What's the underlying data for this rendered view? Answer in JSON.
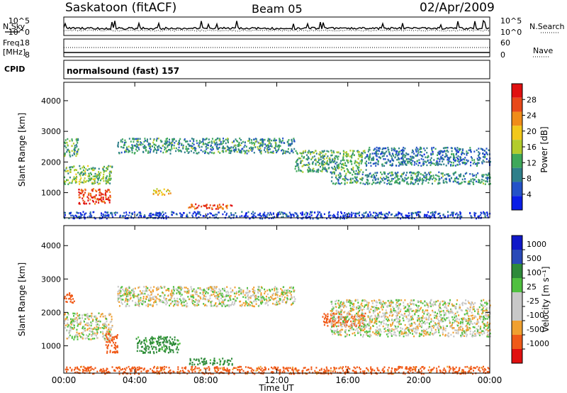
{
  "header": {
    "station": "Saskatoon (fitACF)",
    "beam": "Beam 05",
    "date": "02/Apr/2009"
  },
  "labels": {
    "nsky": "N.Sky",
    "nsearch": "N.Search",
    "freq": "Freq.",
    "mhz": "[MHz]",
    "nave": "Nave",
    "cpid": "CPID",
    "cpid_value": "normalsound (fast) 157",
    "xaxis_title": "Time UT",
    "slant_range": "Slant Range [km]",
    "power_label": "Power [dB]",
    "velocity_label": "Velocity [m s⁻¹]"
  },
  "noise_axis": {
    "left_ticks": [
      "10^5",
      "10^0"
    ],
    "right_ticks": [
      "10^5",
      "10^0"
    ]
  },
  "freq_axis": {
    "left_ticks": [
      "18",
      "8"
    ],
    "right_ticks": [
      "60",
      "0"
    ]
  },
  "colors": {
    "power": [
      "#0a1ee6",
      "#2452c8",
      "#2f7f8a",
      "#3fa85a",
      "#b3cc2c",
      "#f2c81a",
      "#f08c18",
      "#e8491a",
      "#e01010"
    ],
    "velocity": [
      "#e01010",
      "#f05a18",
      "#f0a030",
      "#c8c8c8",
      "#c8c8c8",
      "#50c040",
      "#2e8a3a",
      "#2a4ab8",
      "#1018c8"
    ]
  },
  "chart_data": [
    {
      "type": "heatmap",
      "panel": "power",
      "xlabel": "Time UT",
      "ylabel": "Slant Range [km]",
      "x_ticks": [
        "00:00",
        "04:00",
        "08:00",
        "12:00",
        "16:00",
        "20:00",
        "00:00"
      ],
      "x_range_hours": [
        0,
        24
      ],
      "y_ticks": [
        1000,
        2000,
        3000,
        4000
      ],
      "ylim": [
        180,
        4600
      ],
      "colorbar": {
        "label": "Power [dB]",
        "ticks": [
          4,
          8,
          12,
          16,
          20,
          24,
          28
        ],
        "range": [
          0,
          32
        ]
      },
      "echo_regions": [
        {
          "t": [
            0.0,
            2.7
          ],
          "range_km": [
            1300,
            1900
          ],
          "value_db": 14
        },
        {
          "t": [
            0.8,
            2.6
          ],
          "range_km": [
            650,
            1150
          ],
          "value_db": 28
        },
        {
          "t": [
            0.0,
            0.8
          ],
          "range_km": [
            2200,
            2800
          ],
          "value_db": 12
        },
        {
          "t": [
            3.0,
            13.0
          ],
          "range_km": [
            2300,
            2800
          ],
          "value_db": 10
        },
        {
          "t": [
            5.0,
            6.0
          ],
          "range_km": [
            950,
            1150
          ],
          "value_db": 20
        },
        {
          "t": [
            7.0,
            9.5
          ],
          "range_km": [
            480,
            650
          ],
          "value_db": 26
        },
        {
          "t": [
            13.0,
            17.0
          ],
          "range_km": [
            1700,
            2400
          ],
          "value_db": 12
        },
        {
          "t": [
            15.0,
            24.0
          ],
          "range_km": [
            1300,
            1700
          ],
          "value_db": 10
        },
        {
          "t": [
            17.0,
            24.0
          ],
          "range_km": [
            1900,
            2500
          ],
          "value_db": 8
        },
        {
          "t": [
            0.0,
            24.0
          ],
          "range_km": [
            180,
            400
          ],
          "value_db": 4
        }
      ]
    },
    {
      "type": "heatmap",
      "panel": "velocity",
      "xlabel": "Time UT",
      "ylabel": "Slant Range [km]",
      "x_ticks": [
        "00:00",
        "04:00",
        "08:00",
        "12:00",
        "16:00",
        "20:00",
        "00:00"
      ],
      "x_range_hours": [
        0,
        24
      ],
      "y_ticks": [
        1000,
        2000,
        3000,
        4000
      ],
      "ylim": [
        180,
        4600
      ],
      "colorbar": {
        "label": "Velocity [m s⁻¹]",
        "ticks": [
          1000,
          500,
          100,
          25,
          -25,
          -100,
          -500,
          -1000
        ]
      },
      "echo_regions": [
        {
          "t": [
            0.0,
            2.7
          ],
          "range_km": [
            1200,
            2000
          ],
          "value_ms": 0
        },
        {
          "t": [
            2.3,
            3.0
          ],
          "range_km": [
            800,
            1400
          ],
          "value_ms": -300
        },
        {
          "t": [
            0.0,
            0.6
          ],
          "range_km": [
            2300,
            2600
          ],
          "value_ms": -300
        },
        {
          "t": [
            3.0,
            13.0
          ],
          "range_km": [
            2200,
            2800
          ],
          "value_ms": 0
        },
        {
          "t": [
            4.0,
            6.5
          ],
          "range_km": [
            800,
            1300
          ],
          "value_ms": 150
        },
        {
          "t": [
            7.0,
            9.5
          ],
          "range_km": [
            450,
            650
          ],
          "value_ms": 150
        },
        {
          "t": [
            14.5,
            17.0
          ],
          "range_km": [
            1600,
            2000
          ],
          "value_ms": -300
        },
        {
          "t": [
            15.0,
            24.0
          ],
          "range_km": [
            1300,
            2400
          ],
          "value_ms": 0
        },
        {
          "t": [
            0.0,
            24.0
          ],
          "range_km": [
            180,
            400
          ],
          "value_ms": -150
        }
      ]
    }
  ]
}
